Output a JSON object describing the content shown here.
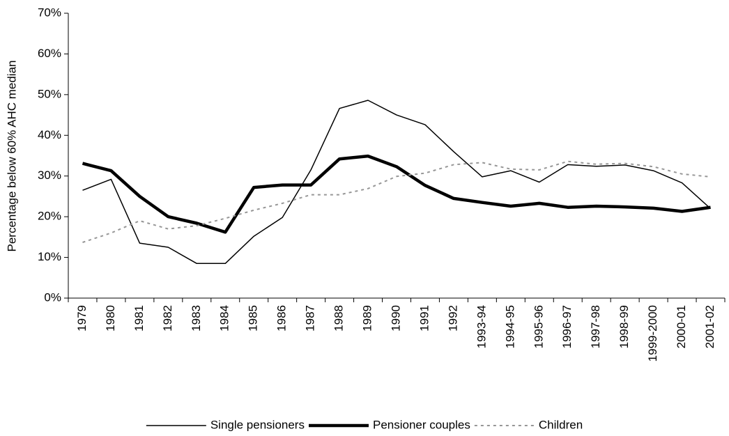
{
  "chart_data": {
    "type": "line",
    "y_label": "Percentage below 60% AHC median",
    "categories": [
      "1979",
      "1980",
      "1981",
      "1982",
      "1983",
      "1984",
      "1985",
      "1986",
      "1987",
      "1988",
      "1989",
      "1990",
      "1991",
      "1992",
      "1993-94",
      "1994-95",
      "1995-96",
      "1996-97",
      "1997-98",
      "1998-99",
      "1999-2000",
      "2000-01",
      "2001-02"
    ],
    "series": [
      {
        "name": "Single pensioners",
        "color": "#000000",
        "style": "thin",
        "values": [
          26.5,
          29.2,
          13.5,
          12.5,
          8.5,
          8.5,
          15.2,
          19.8,
          31.5,
          46.6,
          48.6,
          45,
          42.6,
          36,
          29.8,
          31.3,
          28.5,
          32.8,
          32.4,
          32.7,
          31.3,
          28.3,
          22
        ]
      },
      {
        "name": "Pensioner couples",
        "color": "#000000",
        "style": "thick",
        "values": [
          33.1,
          31.3,
          25,
          20,
          18.4,
          16.2,
          27.2,
          27.8,
          27.8,
          34.2,
          34.9,
          32.3,
          27.7,
          24.5,
          23.5,
          22.6,
          23.3,
          22.3,
          22.6,
          22.4,
          22.1,
          21.3,
          22.3
        ]
      },
      {
        "name": "Children",
        "color": "#969696",
        "style": "dashed",
        "values": [
          13.7,
          16,
          19,
          17,
          17.8,
          19.6,
          21.6,
          23.3,
          25.4,
          25.4,
          26.9,
          29.9,
          30.7,
          32.8,
          33.3,
          31.7,
          31.5,
          33.6,
          32.9,
          33.1,
          32.3,
          30.5,
          29.8
        ]
      }
    ],
    "ylim": [
      0,
      70
    ],
    "yticks": [
      {
        "value": 0,
        "label": "0%"
      },
      {
        "value": 10,
        "label": "10%"
      },
      {
        "value": 20,
        "label": "20%"
      },
      {
        "value": 30,
        "label": "30%"
      },
      {
        "value": 40,
        "label": "40%"
      },
      {
        "value": 50,
        "label": "50%"
      },
      {
        "value": 60,
        "label": "60%"
      },
      {
        "value": 70,
        "label": "70%"
      }
    ],
    "grid": false,
    "legend": "bottom"
  }
}
